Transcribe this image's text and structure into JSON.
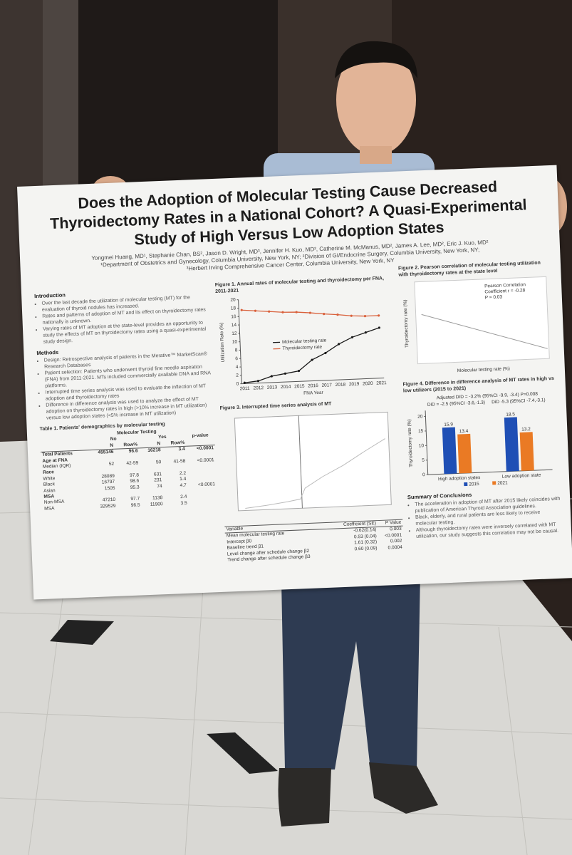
{
  "poster": {
    "title": "Does the Adoption of Molecular Testing Cause Decreased Thyroidectomy Rates in a National Cohort? A Quasi-Experimental Study of High Versus Low Adoption States",
    "authors": "Yongmei Huang, MD¹, Stephanie Chan, BS², Jason D. Wright, MD³, Jennifer H. Kuo, MD², Catherine M. McManus, MD², James A. Lee, MD², Eric J. Kuo, MD²",
    "affiliations": [
      "¹Department of Obstetrics and Gynecology, Columbia University, New York, NY; ²Division of GI/Endocrine Surgery, Columbia University, New York, NY;",
      "³Herbert Irving Comprehensive Cancer Center, Columbia University, New York, NY"
    ],
    "introduction": {
      "heading": "Introduction",
      "bullets": [
        "Over the last decade the utilization of molecular testing (MT) for the evaluation of thyroid nodules has increased.",
        "Rates and patterns of adoption of MT and its effect on thyroidectomy rates nationally is unknown.",
        "Varying rates of MT adoption at the state-level provides an opportunity to study the effects of MT on thyroidectomy rates using a quasi-experimental study design."
      ]
    },
    "methods": {
      "heading": "Methods",
      "bullets": [
        "Design: Retrospective analysis of patients in the Merative™ MarketScan® Research Databases",
        "Patient selection: Patients who underwent thyroid fine needle aspiration (FNA) from 2011-2021. MTs included commercially available DNA and RNA platforms.",
        "Interrupted time series analysis was used to evaluate the inflection of MT adoption and thyroidectomy rates",
        "Difference in difference analysis was used to analyze the effect of MT adoption on thyroidectomy rates in high (>10% increase in MT utilization) versus low adoption states (<5% increase in MT utilization)"
      ]
    },
    "table1": {
      "caption": "Table 1. Patients' demographics by molecular testing",
      "group": "Molecular Testing",
      "header": [
        "No",
        "Yes",
        "p-value"
      ],
      "subheader": [
        "N",
        "Row%",
        "N",
        "Row%"
      ],
      "rows": [
        [
          "Total Patients",
          "455146",
          "96.6",
          "16218",
          "3.4",
          "<0.0001"
        ],
        [
          "Age at FNA"
        ],
        [
          "Median (IQR)",
          "52",
          "42-59",
          "50",
          "41-58",
          "<0.0001"
        ],
        [
          "Race"
        ],
        [
          "White",
          "28089",
          "97.8",
          "631",
          "2.2"
        ],
        [
          "Black",
          "16797",
          "98.6",
          "231",
          "1.4"
        ],
        [
          "Asian",
          "1505",
          "95.3",
          "74",
          "4.7",
          "<0.0001"
        ],
        [
          "MSA"
        ],
        [
          "Non-MSA",
          "47210",
          "97.7",
          "1138",
          "2.4"
        ],
        [
          "MSA",
          "329529",
          "96.5",
          "11900",
          "3.5"
        ]
      ]
    },
    "figure1": {
      "caption": "Figure 1. Annual rates of molecular testing and thyroidectomy per FNA, 2011-2021",
      "xlabel": "FNA Year",
      "ylabel": "Utilization Rate (%)",
      "categories": [
        "2011",
        "2012",
        "2013",
        "2014",
        "2015",
        "2016",
        "2017",
        "2018",
        "2019",
        "2020",
        "2021"
      ],
      "series": [
        {
          "name": "Molecular testing rate",
          "color": "#1a1a1a",
          "values": [
            0.2,
            0.5,
            1.5,
            2,
            2.5,
            5,
            6.5,
            8.5,
            10,
            11,
            12
          ]
        },
        {
          "name": "Thyroidectomy rate",
          "color": "#d9603b",
          "values": [
            17.5,
            17.2,
            16.9,
            16.6,
            16.5,
            16.2,
            15.8,
            15.5,
            15.1,
            14.9,
            14.9
          ]
        }
      ],
      "ylim": [
        0,
        20
      ],
      "yticks": [
        0,
        2,
        4,
        6,
        8,
        10,
        12,
        14,
        16,
        18,
        20
      ]
    },
    "figure2": {
      "caption": "Figure 2. Pearson correlation of molecular testing utilization with thyroidectomy rates at the state level",
      "annotation": [
        "Pearson Correlation",
        "Coefficient r = -0.28",
        "P = 0.03"
      ],
      "xlabel": "Molecular testing rate (%)",
      "ylabel": "Thyroidectomy rate (%)"
    },
    "figure3": {
      "caption": "Figure 3. Interrupted time series analysis of MT",
      "header": [
        "Variable",
        "Coefficient (SE)",
        "P Value"
      ],
      "rows": [
        [
          "Mean molecular testing rate",
          "-0.62(0.14)",
          "0.003"
        ],
        [
          "Intercept β0",
          "0.53 (0.04)",
          "<0.0001"
        ],
        [
          "Baseline trend β1",
          "1.61 (0.32)",
          "0.002"
        ],
        [
          "Level change after schedule change β2",
          "0.60 (0.09)",
          "0.0004"
        ],
        [
          "Trend change after schedule change β3"
        ]
      ]
    },
    "figure4": {
      "caption": "Figure 4. Difference in difference analysis of MT rates in high vs low utilizers (2015 to 2021)",
      "annotation": "Adjusted DID = -3.2% (95%CI -9.9, -3.4) P=0.008",
      "did": [
        "DiD = -2.5 (95%CI -3.6,-1.3)",
        "DiD -5.3 (95%CI -7.4,-3.1)"
      ],
      "ylabel": "Thyroidectomy rate (%)",
      "categories": [
        "High adoption states",
        "Low adoption state"
      ],
      "series": [
        {
          "name": "2015",
          "color": "#1f4fb5",
          "values": [
            15.9,
            18.5
          ]
        },
        {
          "name": "2021",
          "color": "#ea7a24",
          "values": [
            13.4,
            13.2
          ]
        }
      ],
      "ylim": [
        0,
        22
      ],
      "yticks": [
        0,
        5,
        10,
        15,
        20
      ]
    },
    "conclusions": {
      "heading": "Summary of Conclusions",
      "bullets": [
        "The acceleration in adoption of MT after 2015 likely coincides with publication of American Thyroid Association guidelines.",
        "Black, elderly, and rural patients are less likely to receive molecular testing.",
        "Although thyroidectomy rates were inversely correlated with MT utilization, our study suggests this correlation may not be causal."
      ]
    }
  }
}
